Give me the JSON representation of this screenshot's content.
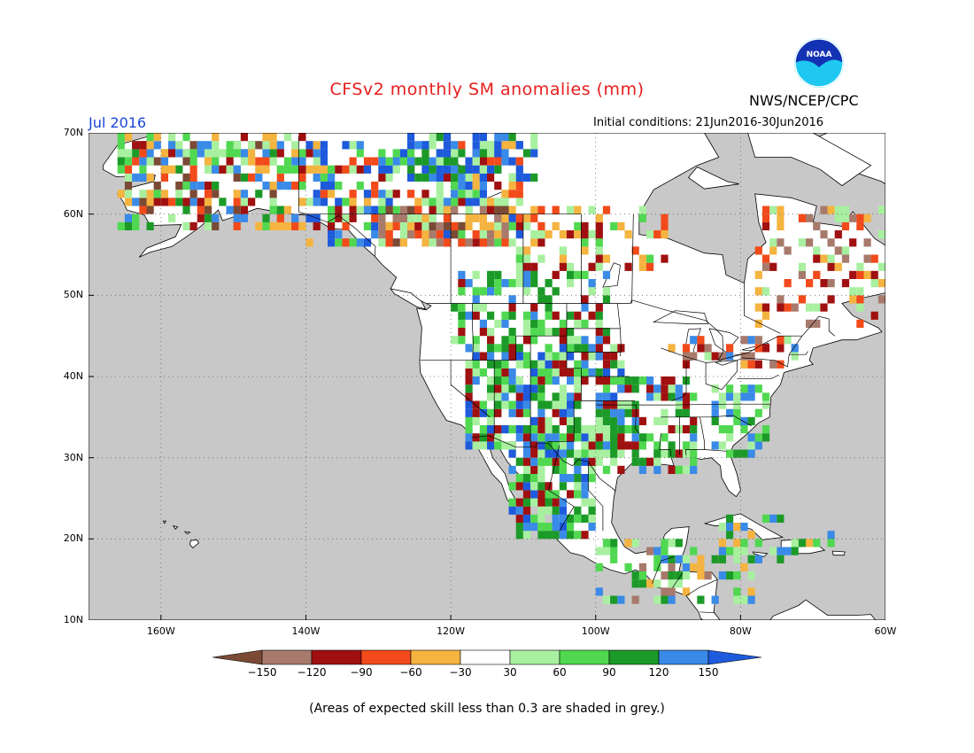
{
  "header": {
    "title": "CFSv2 monthly SM anomalies (mm)",
    "agency": "NWS/NCEP/CPC",
    "month": "Jul 2016",
    "initial_conditions": "Initial conditions: 21Jun2016-30Jun2016",
    "logo_text": "NOAA"
  },
  "map": {
    "latitude_labels": [
      "70N",
      "60N",
      "50N",
      "40N",
      "30N",
      "20N",
      "10N"
    ],
    "longitude_labels": [
      "160W",
      "140W",
      "120W",
      "100W",
      "80W",
      "60W"
    ],
    "colors": {
      "ocean": "#c8c8c8",
      "land": "#ffffff",
      "coast": "#000000"
    }
  },
  "legend": {
    "labels": [
      "-150",
      "-120",
      "-90",
      "-60",
      "-30",
      "30",
      "60",
      "90",
      "120",
      "150"
    ],
    "colors": [
      "#7a4a35",
      "#a77a6c",
      "#a01010",
      "#f24a1a",
      "#f5b340",
      "#ffffff",
      "#a8f0a0",
      "#50d850",
      "#1c9a28",
      "#3a8ae8",
      "#1e5adc"
    ]
  },
  "footnote": "(Areas of expected skill less than 0.3 are shaded in grey.)"
}
